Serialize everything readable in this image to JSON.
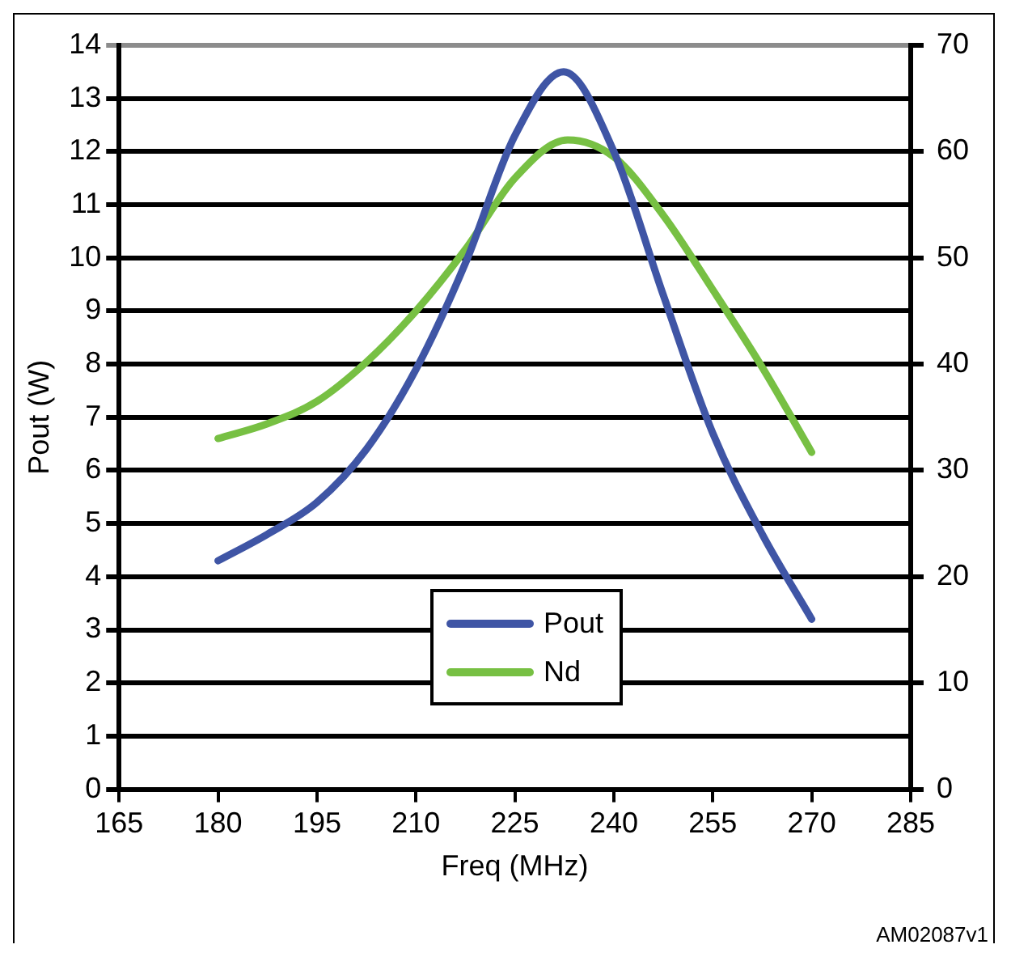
{
  "chart_data": {
    "type": "line",
    "xlabel": "Freq (MHz)",
    "ylabel": "Pout (W)",
    "xlim": [
      165,
      285
    ],
    "xticks": [
      165,
      180,
      195,
      210,
      225,
      240,
      255,
      270,
      285
    ],
    "ylim": [
      0,
      14
    ],
    "yticks": [
      0,
      1,
      2,
      3,
      4,
      5,
      6,
      7,
      8,
      9,
      10,
      11,
      12,
      13,
      14
    ],
    "y2lim": [
      0,
      70
    ],
    "y2ticks": [
      0,
      10,
      20,
      30,
      40,
      50,
      60,
      70
    ],
    "series": [
      {
        "name": "Pout",
        "color": "#3f55a5",
        "x": [
          180,
          187.5,
          195,
          202.5,
          210,
          217.5,
          225,
          232.4,
          240,
          247.5,
          255,
          262.5,
          270
        ],
        "values": [
          4.3,
          4.8,
          5.4,
          6.4,
          7.9,
          9.9,
          12.3,
          13.5,
          12.0,
          9.3,
          6.7,
          4.8,
          3.2
        ]
      },
      {
        "name": "Nd",
        "color": "#77c043",
        "axis": "y2",
        "x": [
          180,
          187.5,
          195,
          202.5,
          210,
          217.5,
          225,
          233,
          240,
          247.5,
          255,
          262.5,
          270
        ],
        "values": [
          33,
          34.4,
          36.5,
          40.2,
          45,
          50.8,
          57.5,
          61.1,
          59.5,
          54,
          47,
          39.7,
          31.7
        ]
      }
    ],
    "grid": "y",
    "legend": "bottom",
    "marker": "none",
    "line_style": "solid",
    "annotations": [
      "AM02087v1"
    ]
  }
}
